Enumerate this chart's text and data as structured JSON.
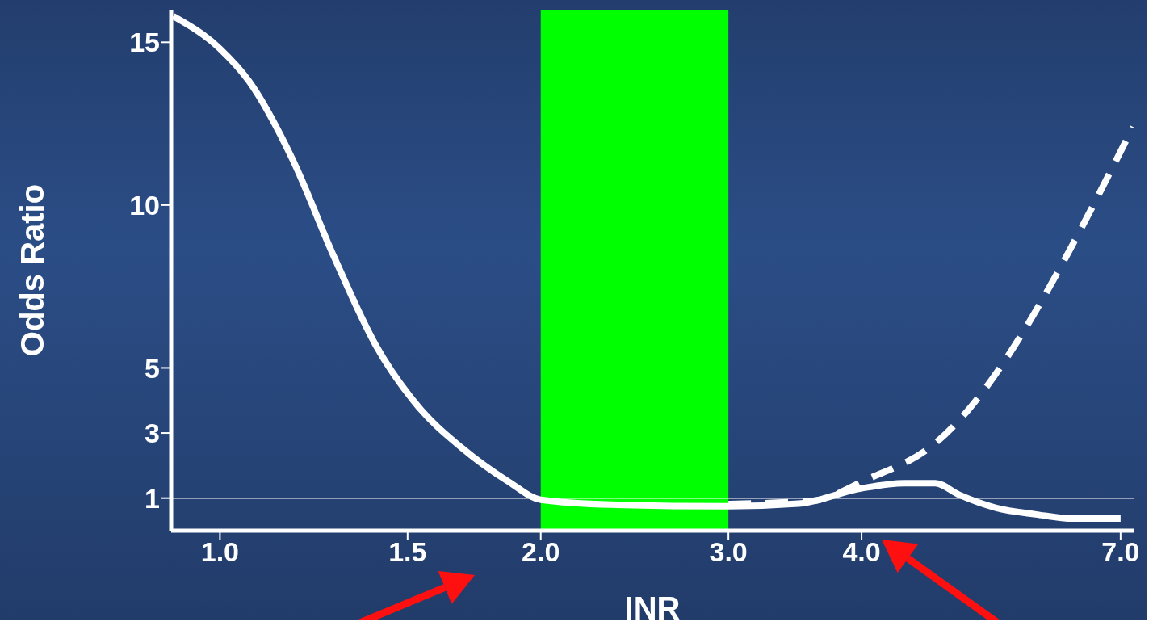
{
  "chart_data": {
    "type": "line",
    "xlabel": "INR",
    "ylabel": "Odds Ratio",
    "xlim": [
      0.9,
      7.2
    ],
    "ylim": [
      0,
      16
    ],
    "xticks": [
      {
        "value": 1,
        "label": "1.0"
      },
      {
        "value": 1.5,
        "label": "1.5"
      },
      {
        "value": 2,
        "label": "2.0"
      },
      {
        "value": 3,
        "label": "3.0"
      },
      {
        "value": 4,
        "label": "4.0"
      },
      {
        "value": 7,
        "label": "7.0"
      }
    ],
    "yticks": [
      1,
      3,
      5,
      10,
      15
    ],
    "log": "x",
    "grid": false,
    "legend": false,
    "marker": "none",
    "series": [
      {
        "color": "#ffffff",
        "line_style": "solid",
        "x": [
          0.904,
          1.0,
          1.065,
          1.17,
          1.28,
          1.4,
          1.536,
          1.687,
          1.867,
          2.0,
          2.33,
          3.0,
          3.49,
          4.0,
          4.39,
          4.69,
          4.94,
          5.35,
          5.83,
          6.32,
          7.0
        ],
        "values": [
          15.8,
          14.8,
          13.8,
          11.4,
          8.4,
          5.7,
          3.8,
          2.54,
          1.5,
          0.95,
          0.8,
          0.75,
          0.83,
          1.3,
          1.46,
          1.46,
          1.1,
          0.7,
          0.5,
          0.37,
          0.37
        ]
      },
      {
        "color": "#ffffff",
        "line_style": "dashed",
        "x": [
          3.0,
          3.6,
          4.05,
          4.63,
          7.19
        ],
        "values": [
          0.82,
          0.92,
          1.58,
          2.54,
          12.4
        ]
      }
    ],
    "bands": [
      {
        "axis": "x",
        "from": 2,
        "to": 3,
        "color": "#00ff00"
      }
    ],
    "ref_lines": [
      {
        "axis": "y",
        "value": 1,
        "color": "#ffffff"
      }
    ]
  }
}
